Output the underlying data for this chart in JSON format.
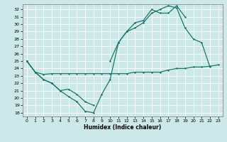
{
  "xlabel": "Humidex (Indice chaleur)",
  "bg_color": "#cce8e8",
  "grid_color": "#ffffff",
  "line_color": "#1a7a6a",
  "xlim": [
    -0.5,
    23.5
  ],
  "ylim": [
    17.5,
    32.7
  ],
  "xticks": [
    0,
    1,
    2,
    3,
    4,
    5,
    6,
    7,
    8,
    9,
    10,
    11,
    12,
    13,
    14,
    15,
    16,
    17,
    18,
    19,
    20,
    21,
    22,
    23
  ],
  "yticks": [
    18,
    19,
    20,
    21,
    22,
    23,
    24,
    25,
    26,
    27,
    28,
    29,
    30,
    31,
    32
  ],
  "line1_x": [
    0,
    1,
    2,
    3,
    4,
    5,
    6,
    7,
    8,
    9,
    10,
    11,
    12,
    13,
    14,
    15,
    16,
    17,
    18,
    19,
    20,
    21,
    22,
    23
  ],
  "line1_y": [
    25.0,
    23.5,
    23.2,
    23.3,
    23.3,
    23.3,
    23.3,
    23.3,
    23.3,
    23.3,
    23.3,
    23.3,
    23.3,
    23.5,
    23.5,
    23.5,
    23.5,
    23.8,
    24.0,
    24.0,
    24.2,
    24.2,
    24.3,
    24.5
  ],
  "line2_x": [
    0,
    1,
    2,
    3,
    4,
    5,
    6,
    7,
    8,
    9,
    10,
    11,
    12,
    13,
    14,
    15,
    16,
    17,
    18,
    19,
    20,
    21,
    22,
    23
  ],
  "line2_y": [
    25.0,
    23.5,
    22.5,
    22.0,
    21.0,
    20.2,
    19.5,
    18.2,
    18.0,
    20.5,
    22.5,
    27.5,
    29.0,
    29.5,
    30.2,
    31.5,
    32.0,
    32.5,
    32.2,
    29.5,
    28.0,
    27.5,
    24.2,
    null
  ],
  "line3_x": [
    0,
    1,
    2,
    3,
    4,
    5,
    6,
    7,
    8,
    9,
    10,
    11,
    12,
    13,
    14,
    15,
    16,
    17,
    18,
    19,
    20,
    21,
    22,
    23
  ],
  "line3_y": [
    25.0,
    23.5,
    22.5,
    22.0,
    21.0,
    21.2,
    20.5,
    19.5,
    19.0,
    null,
    25.0,
    27.5,
    29.0,
    30.2,
    30.5,
    32.0,
    31.5,
    31.5,
    32.5,
    31.0,
    null,
    null,
    null,
    null
  ]
}
